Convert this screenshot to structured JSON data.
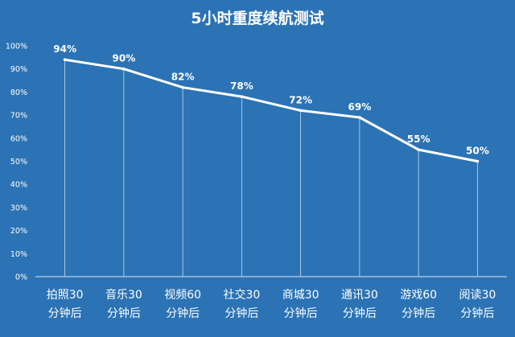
{
  "chart_data": {
    "type": "line",
    "title": "5小时重度续航测试",
    "categories": [
      "拍照30分钟后",
      "音乐30分钟后",
      "视频60分钟后",
      "社交30分钟后",
      "商城30分钟后",
      "通讯30分钟后",
      "游戏60分钟后",
      "阅读30分钟后"
    ],
    "category_lines": [
      [
        "拍照30",
        "分钟后"
      ],
      [
        "音乐30",
        "分钟后"
      ],
      [
        "视频60",
        "分钟后"
      ],
      [
        "社交30",
        "分钟后"
      ],
      [
        "商城30",
        "分钟后"
      ],
      [
        "通讯30",
        "分钟后"
      ],
      [
        "游戏60",
        "分钟后"
      ],
      [
        "阅读30",
        "分钟后"
      ]
    ],
    "values": [
      94,
      90,
      82,
      78,
      72,
      69,
      55,
      50
    ],
    "data_labels": [
      "94%",
      "90%",
      "82%",
      "78%",
      "72%",
      "69%",
      "55%",
      "50%"
    ],
    "y_ticks": [
      "0%",
      "10%",
      "20%",
      "30%",
      "40%",
      "50%",
      "60%",
      "70%",
      "80%",
      "90%",
      "100%"
    ],
    "ylim": [
      0,
      100
    ],
    "xlabel": "",
    "ylabel": "",
    "grid": false,
    "drop_lines": true,
    "colors": {
      "background": "#2b73b5",
      "line": "#ffffff",
      "text": "#ffffff",
      "drop_line": "#c9daee",
      "axis": "#dbe6f3"
    }
  }
}
